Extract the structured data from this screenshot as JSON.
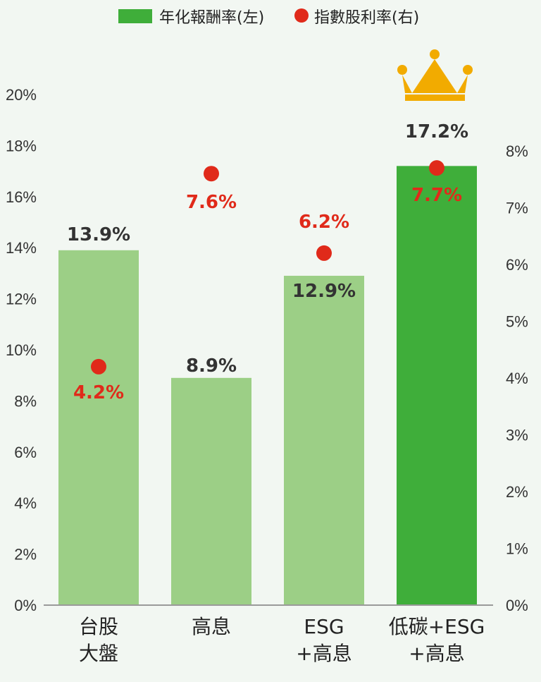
{
  "chart_data": {
    "type": "bar",
    "categories": [
      [
        "台股",
        "大盤"
      ],
      [
        "高息"
      ],
      [
        "ESG",
        "+高息"
      ],
      [
        "低碳+ESG",
        "+高息"
      ]
    ],
    "series": [
      {
        "name": "年化報酬率(左)",
        "chart": "bar",
        "axis": "left",
        "values": [
          13.9,
          8.9,
          12.9,
          17.2
        ],
        "labels": [
          "13.9%",
          "8.9%",
          "12.9%",
          "17.2%"
        ],
        "colors": [
          "#9ccf86",
          "#9ccf86",
          "#9ccf86",
          "#3fae3a"
        ]
      },
      {
        "name": "指數股利率(右)",
        "chart": "scatter",
        "axis": "right",
        "values": [
          4.2,
          7.6,
          6.2,
          7.7
        ],
        "labels": [
          "4.2%",
          "7.6%",
          "6.2%",
          "7.7%"
        ],
        "color": "#e02a1a"
      }
    ],
    "left_axis": {
      "ylim": [
        0,
        20
      ],
      "ticks": [
        0,
        2,
        4,
        6,
        8,
        10,
        12,
        14,
        16,
        18,
        20
      ],
      "tick_labels": [
        "0%",
        "2%",
        "4%",
        "6%",
        "8%",
        "10%",
        "12%",
        "14%",
        "16%",
        "18%",
        "20%"
      ]
    },
    "right_axis": {
      "ylim": [
        0,
        8
      ],
      "ticks": [
        0,
        1,
        2,
        3,
        4,
        5,
        6,
        7,
        8
      ],
      "tick_labels": [
        "0%",
        "1%",
        "2%",
        "3%",
        "4%",
        "5%",
        "6%",
        "7%",
        "8%"
      ]
    },
    "grid": false,
    "legend_position": "top-center",
    "highlight_icon": "crown-icon",
    "highlight_index": 3,
    "highlight_color": "#f2ab00"
  }
}
